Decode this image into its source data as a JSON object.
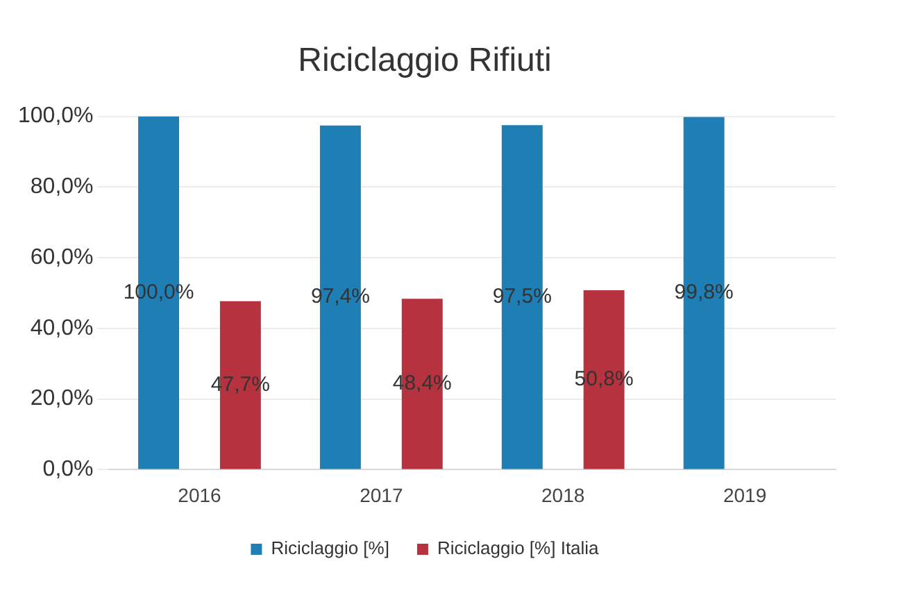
{
  "chart_data": {
    "type": "bar",
    "title": "Riciclaggio Rifiuti",
    "categories": [
      "2016",
      "2017",
      "2018",
      "2019"
    ],
    "series": [
      {
        "name": "Riciclaggio [%]",
        "color": "#1f7fb5",
        "values": [
          100.0,
          97.4,
          97.5,
          99.8
        ],
        "value_labels": [
          "100,0%",
          "97,4%",
          "97,5%",
          "99,8%"
        ]
      },
      {
        "name": "Riciclaggio [%] Italia",
        "color": "#b7323f",
        "values": [
          47.7,
          48.4,
          50.8,
          null
        ],
        "value_labels": [
          "47,7%",
          "48,4%",
          "50,8%",
          null
        ]
      }
    ],
    "ylim": [
      0,
      100
    ],
    "yticks": [
      {
        "value": 0,
        "label": "0,0%"
      },
      {
        "value": 20,
        "label": "20,0%"
      },
      {
        "value": 40,
        "label": "40,0%"
      },
      {
        "value": 60,
        "label": "60,0%"
      },
      {
        "value": 80,
        "label": "80,0%"
      },
      {
        "value": 100,
        "label": "100,0%"
      }
    ],
    "grid": "y",
    "legend": "bottom"
  }
}
